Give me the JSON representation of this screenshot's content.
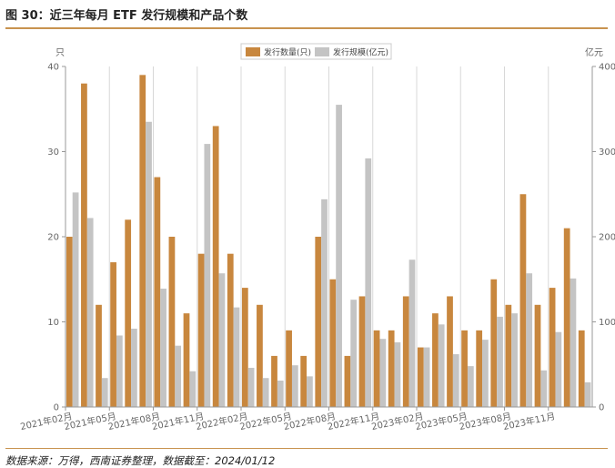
{
  "figure": {
    "title": "图 30：近三年每月 ETF 发行规模和产品个数",
    "source": "数据来源：万得，西南证券整理，数据截至：2024/01/12"
  },
  "chart_data": {
    "type": "bar",
    "title": "",
    "legend": {
      "placement": "top-center"
    },
    "grid": {
      "vertical": true,
      "horizontal": false
    },
    "categories": [
      "2021年02月",
      "2021年03月",
      "2021年04月",
      "2021年05月",
      "2021年06月",
      "2021年07月",
      "2021年08月",
      "2021年09月",
      "2021年10月",
      "2021年11月",
      "2021年12月",
      "2022年01月",
      "2022年02月",
      "2022年03月",
      "2022年04月",
      "2022年05月",
      "2022年06月",
      "2022年07月",
      "2022年08月",
      "2022年09月",
      "2022年10月",
      "2022年11月",
      "2022年12月",
      "2023年01月",
      "2023年02月",
      "2023年03月",
      "2023年04月",
      "2023年05月",
      "2023年06月",
      "2023年07月",
      "2023年08月",
      "2023年09月",
      "2023年10月",
      "2023年11月",
      "2023年12月",
      "2024年01月"
    ],
    "x_tick_labels": [
      "2021年02月",
      "2021年05月",
      "2021年08月",
      "2021年11月",
      "2022年02月",
      "2022年05月",
      "2022年08月",
      "2022年11月",
      "2023年02月",
      "2023年05月",
      "2023年08月",
      "2023年11月"
    ],
    "y_left": {
      "unit": "只",
      "ylim": [
        0,
        40
      ],
      "ticks": [
        "0",
        "10",
        "20",
        "30",
        "40"
      ]
    },
    "y_right": {
      "unit": "亿元",
      "ylim": [
        0,
        400
      ],
      "ticks": [
        "0",
        "100",
        "200",
        "300",
        "400"
      ]
    },
    "series": [
      {
        "name": "发行数量(只)",
        "axis": "left",
        "color": "#c8873e",
        "values": [
          20,
          38,
          12,
          17,
          22,
          39,
          27,
          20,
          11,
          18,
          33,
          18,
          14,
          12,
          6,
          9,
          6,
          20,
          15,
          6,
          13,
          9,
          9,
          13,
          7,
          11,
          13,
          9,
          9,
          15,
          12,
          25,
          12,
          14,
          21,
          9
        ]
      },
      {
        "name": "发行规模(亿元)",
        "axis": "right",
        "color": "#c4c4c4",
        "values": [
          252,
          222,
          34,
          84,
          92,
          335,
          139,
          72,
          42,
          309,
          157,
          117,
          46,
          34,
          31,
          49,
          36,
          244,
          355,
          126,
          292,
          80,
          76,
          173,
          70,
          97,
          62,
          48,
          79,
          106,
          110,
          157,
          43,
          88,
          151,
          29
        ]
      }
    ]
  }
}
